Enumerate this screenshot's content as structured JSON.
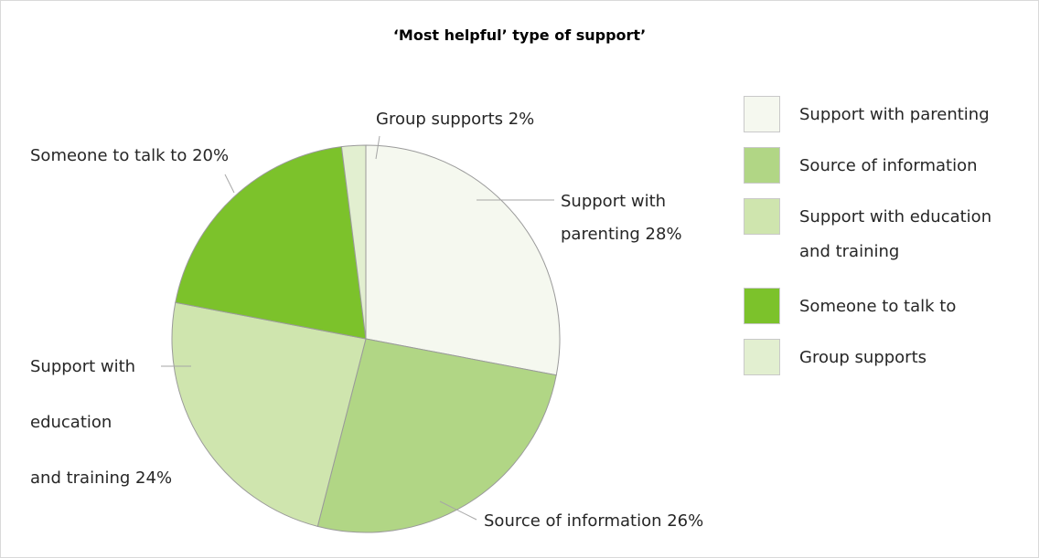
{
  "chart_data": {
    "type": "pie",
    "title": "‘Most helpful’ type of support’",
    "slices": [
      {
        "name": "Support with parenting",
        "value": 28,
        "color": "#f5f8ef",
        "label_lines": [
          "Support with",
          "parenting 28%"
        ]
      },
      {
        "name": "Source of information",
        "value": 26,
        "color": "#b1d685",
        "label_lines": [
          "Source of information 26%"
        ]
      },
      {
        "name": "Support with education and training",
        "value": 24,
        "color": "#cfe5ae",
        "label_lines": [
          "Support with",
          "education",
          "and training 24%"
        ]
      },
      {
        "name": "Someone to talk to",
        "value": 20,
        "color": "#7cc22b",
        "label_lines": [
          "Someone to talk to 20%"
        ]
      },
      {
        "name": "Group supports",
        "value": 2,
        "color": "#e2efd0",
        "label_lines": [
          "Group supports 2%"
        ]
      }
    ],
    "legend": {
      "position": "right",
      "items": [
        {
          "lines": [
            "Support with parenting"
          ],
          "color": "#f5f8ef"
        },
        {
          "lines": [
            "Source of information"
          ],
          "color": "#b1d685"
        },
        {
          "lines": [
            "Support with education",
            "and training"
          ],
          "color": "#cfe5ae"
        },
        {
          "lines": [
            "Someone to talk to"
          ],
          "color": "#7cc22b"
        },
        {
          "lines": [
            "Group supports"
          ],
          "color": "#e2efd0"
        }
      ]
    }
  }
}
